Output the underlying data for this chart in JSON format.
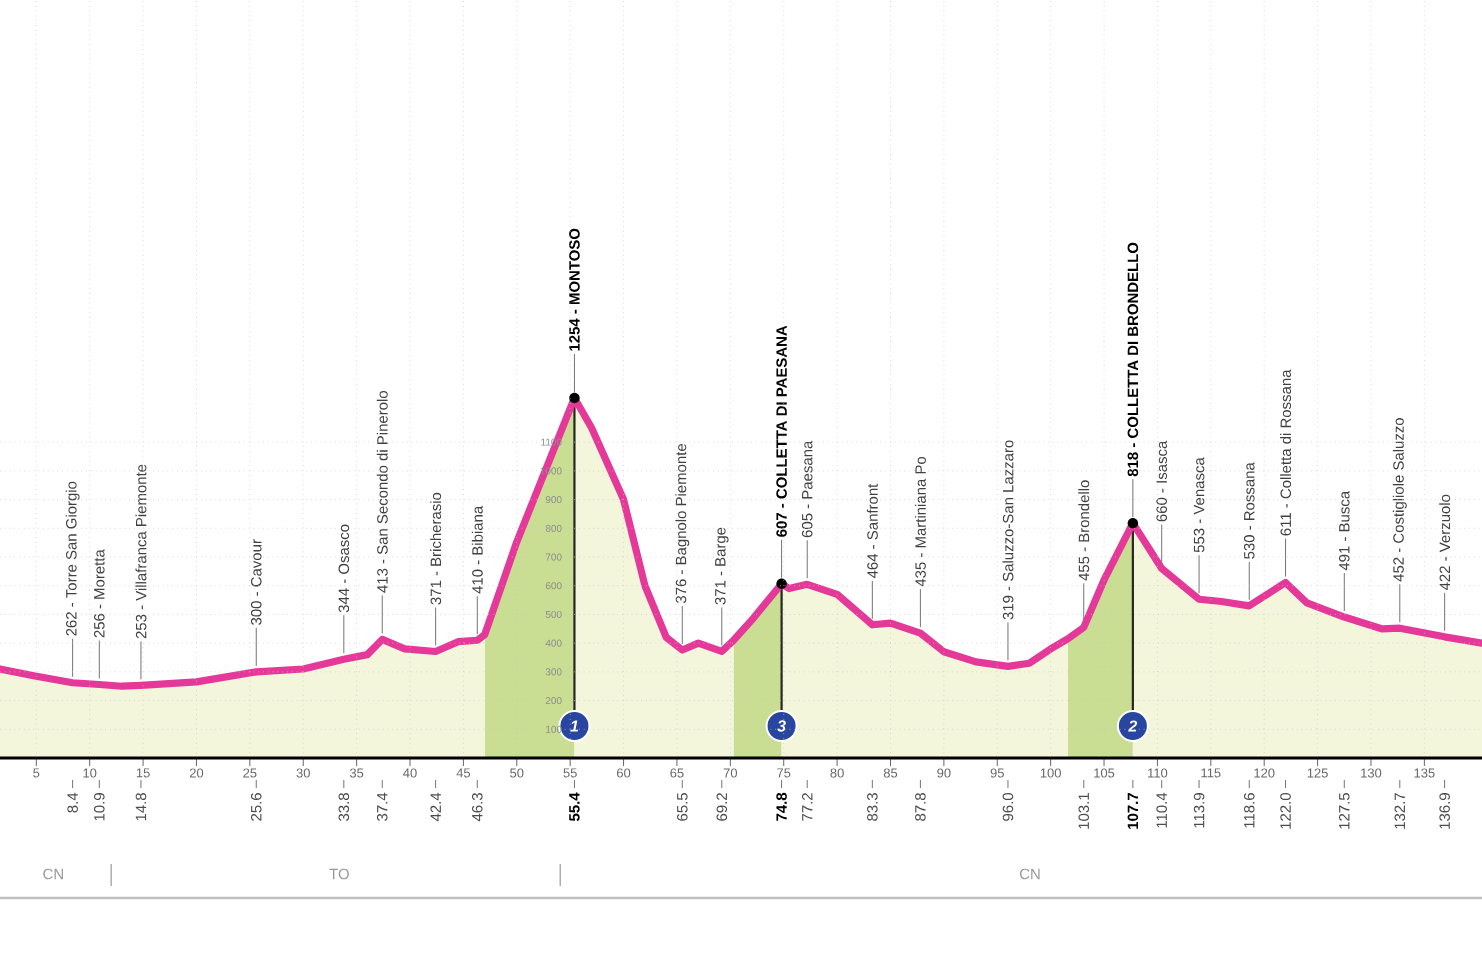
{
  "chart_data": {
    "type": "area",
    "x": [
      1.6,
      5,
      8.4,
      10.9,
      13,
      14.8,
      20,
      25.6,
      30,
      33.8,
      36,
      37.4,
      39.5,
      42.4,
      44.5,
      46.3,
      47.0,
      50,
      55.4,
      57,
      60,
      62,
      64,
      65.5,
      67,
      69.2,
      70.3,
      72,
      74.8,
      75.5,
      77.2,
      80,
      83.3,
      85,
      87.8,
      90,
      93,
      96,
      98,
      100,
      101.6,
      103.1,
      105,
      107.7,
      110.4,
      113.9,
      116,
      118.6,
      122,
      124,
      127.5,
      131,
      132.7,
      136.9,
      140.4
    ],
    "series": [
      {
        "color": "#e5399a",
        "values": [
          310,
          285,
          262,
          256,
          250,
          253,
          265,
          300,
          310,
          344,
          360,
          413,
          380,
          371,
          405,
          410,
          430,
          753,
          1254,
          1150,
          900,
          600,
          420,
          376,
          400,
          371,
          410,
          480,
          607,
          590,
          605,
          570,
          464,
          470,
          435,
          370,
          335,
          319,
          330,
          380,
          415,
          455,
          620,
          818,
          660,
          553,
          545,
          530,
          611,
          540,
          491,
          450,
          452,
          422,
          400
        ]
      }
    ],
    "xlim": [
      1.6,
      140.4
    ],
    "ylim": [
      0,
      2640
    ],
    "xticks": [
      5,
      10,
      15,
      20,
      25,
      30,
      35,
      40,
      45,
      50,
      55,
      60,
      65,
      70,
      75,
      80,
      85,
      90,
      95,
      100,
      105,
      110,
      115,
      120,
      125,
      130,
      135
    ],
    "yticks": [
      100,
      200,
      300,
      400,
      500,
      600,
      700,
      800,
      900,
      1000,
      1100
    ],
    "x2lim": [
      1.6,
      140.4
    ],
    "x2ticks": [
      8.4,
      10.9,
      14.8,
      25.6,
      33.8,
      37.4,
      42.4,
      46.3,
      55.4,
      65.5,
      69.2,
      74.8,
      77.2,
      83.3,
      87.8,
      {
        "value": 96.0,
        "label": "96.0"
      },
      103.1,
      107.7,
      110.4,
      113.9,
      118.6,
      {
        "value": 122.0,
        "label": "122.0"
      },
      127.5,
      132.7,
      136.9
    ],
    "grid": true,
    "bands": [
      {
        "axis": "x",
        "from": 47.0,
        "to": 55.4,
        "color": "#c9de92"
      },
      {
        "axis": "x",
        "from": 70.3,
        "to": 74.8,
        "color": "#c9de92"
      },
      {
        "axis": "x",
        "from": 101.6,
        "to": 107.7,
        "color": "#c9de92"
      }
    ],
    "annotations": [
      {
        "text": "262 - Torre San Giorgio",
        "x": 8.4,
        "y": 262
      },
      {
        "text": "256 - Moretta",
        "x": 10.9,
        "y": 256
      },
      {
        "text": "253 - Villafranca Piemonte",
        "x": 14.8,
        "y": 253
      },
      {
        "text": "300 - Cavour",
        "x": 25.6,
        "y": 300
      },
      {
        "text": "344 - Osasco",
        "x": 33.8,
        "y": 344
      },
      {
        "text": "413 - San Secondo di Pinerolo",
        "x": 37.4,
        "y": 413
      },
      {
        "text": "371 - Bricherasio",
        "x": 42.4,
        "y": 371
      },
      {
        "text": "410 - Bibiana",
        "x": 46.3,
        "y": 410
      },
      {
        "text": "1254 - MONTOSO",
        "x": 55.4,
        "y": 1254
      },
      {
        "text": "376 - Bagnolo Piemonte",
        "x": 65.5,
        "y": 376
      },
      {
        "text": "371 - Barge",
        "x": 69.2,
        "y": 371
      },
      {
        "text": "607 - COLLETTA DI PAESANA",
        "x": 74.8,
        "y": 607
      },
      {
        "text": "605 - Paesana",
        "x": 77.2,
        "y": 605
      },
      {
        "text": "464 - Sanfront",
        "x": 83.3,
        "y": 464
      },
      {
        "text": "435 - Martiniana Po",
        "x": 87.8,
        "y": 435
      },
      {
        "text": "319 - Saluzzo-San Lazzaro",
        "x": 96.0,
        "y": 319
      },
      {
        "text": "455 - Brondello",
        "x": 103.1,
        "y": 455
      },
      {
        "text": "818 - COLLETTA DI BRONDELLO",
        "x": 107.7,
        "y": 818
      },
      {
        "text": "660 - Isasca",
        "x": 110.4,
        "y": 660
      },
      {
        "text": "553 - Venasca",
        "x": 113.9,
        "y": 553
      },
      {
        "text": "530 - Rossana",
        "x": 118.6,
        "y": 530
      },
      {
        "text": "611 - Colletta di Rossana",
        "x": 122.0,
        "y": 611
      },
      {
        "text": "491 - Busca",
        "x": 127.5,
        "y": 491
      },
      {
        "text": "452 - Costigliole Saluzzo",
        "x": 132.7,
        "y": 452
      },
      {
        "text": "422 - Verzuolo",
        "x": 136.9,
        "y": 422
      },
      {
        "text": "1",
        "x": 55.4,
        "y": 1254
      },
      {
        "text": "3",
        "x": 74.8,
        "y": 607
      },
      {
        "text": "2",
        "x": 107.7,
        "y": 818
      },
      "CN",
      "TO",
      "CN"
    ]
  }
}
